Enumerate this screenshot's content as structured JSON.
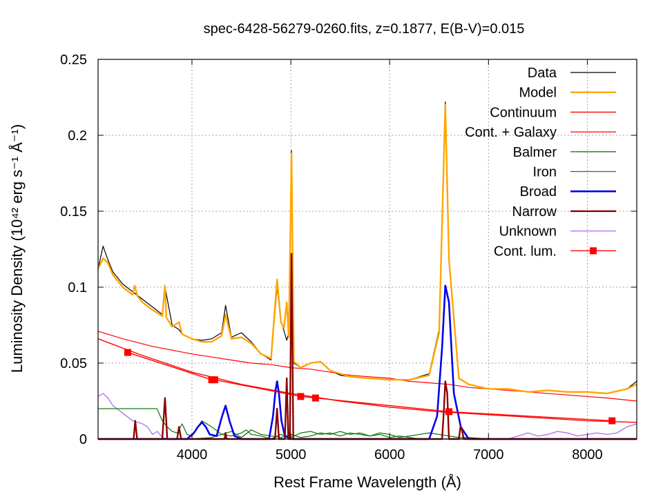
{
  "chart_data": {
    "type": "line",
    "title": "spec-6428-56279-0260.fits, z=0.1877, E(B-V)=0.015",
    "xlabel": "Rest Frame Wavelength (Å)",
    "ylabel": "Luminosity Density (10⁴² erg s⁻¹ Å⁻¹)",
    "xlim": [
      3050,
      8500
    ],
    "ylim": [
      0,
      0.25
    ],
    "xticks": [
      4000,
      5000,
      6000,
      7000,
      8000
    ],
    "xtick_labels": [
      "4000",
      "5000",
      "6000",
      "7000",
      "8000"
    ],
    "yticks": [
      0,
      0.05,
      0.1,
      0.15,
      0.2,
      0.25
    ],
    "ytick_labels": [
      "0",
      "0.05",
      "0.1",
      "0.15",
      "0.2",
      "0.25"
    ],
    "grid": true,
    "legend_position": "top-right",
    "series": [
      {
        "name": "Data",
        "color": "#000000",
        "x": [
          3050,
          3100,
          3150,
          3200,
          3300,
          3400,
          3500,
          3600,
          3700,
          3727,
          3800,
          3869,
          3900,
          4000,
          4100,
          4200,
          4300,
          4340,
          4400,
          4500,
          4600,
          4700,
          4800,
          4861,
          4900,
          4959,
          4980,
          5007,
          5030,
          5100,
          5200,
          5300,
          5400,
          5500,
          5600,
          5800,
          6000,
          6200,
          6400,
          6500,
          6563,
          6600,
          6700,
          6800,
          7000,
          7200,
          7400,
          7600,
          7800,
          8000,
          8200,
          8400,
          8500
        ],
        "y": [
          0.112,
          0.127,
          0.118,
          0.11,
          0.102,
          0.097,
          0.092,
          0.087,
          0.082,
          0.1,
          0.075,
          0.072,
          0.069,
          0.066,
          0.065,
          0.066,
          0.07,
          0.088,
          0.067,
          0.07,
          0.064,
          0.056,
          0.052,
          0.1,
          0.078,
          0.065,
          0.07,
          0.19,
          0.05,
          0.047,
          0.05,
          0.051,
          0.045,
          0.042,
          0.041,
          0.04,
          0.039,
          0.039,
          0.043,
          0.072,
          0.222,
          0.12,
          0.04,
          0.036,
          0.033,
          0.033,
          0.031,
          0.032,
          0.031,
          0.031,
          0.03,
          0.033,
          0.038
        ]
      },
      {
        "name": "Model",
        "color": "#ffa500",
        "x": [
          3050,
          3100,
          3150,
          3200,
          3300,
          3400,
          3420,
          3450,
          3500,
          3600,
          3700,
          3727,
          3740,
          3800,
          3869,
          3900,
          4000,
          4101,
          4200,
          4300,
          4340,
          4400,
          4500,
          4600,
          4700,
          4800,
          4861,
          4900,
          4930,
          4959,
          4980,
          5007,
          5030,
          5100,
          5200,
          5300,
          5400,
          5500,
          5600,
          5800,
          6000,
          6200,
          6400,
          6500,
          6563,
          6600,
          6700,
          6800,
          7000,
          7200,
          7400,
          7600,
          7800,
          8000,
          8200,
          8400,
          8500
        ],
        "y": [
          0.112,
          0.119,
          0.116,
          0.108,
          0.1,
          0.095,
          0.101,
          0.094,
          0.09,
          0.085,
          0.081,
          0.101,
          0.08,
          0.074,
          0.077,
          0.069,
          0.066,
          0.064,
          0.064,
          0.068,
          0.082,
          0.066,
          0.067,
          0.063,
          0.056,
          0.053,
          0.105,
          0.077,
          0.073,
          0.09,
          0.067,
          0.188,
          0.051,
          0.047,
          0.05,
          0.051,
          0.045,
          0.043,
          0.041,
          0.04,
          0.039,
          0.039,
          0.042,
          0.07,
          0.22,
          0.118,
          0.04,
          0.036,
          0.033,
          0.033,
          0.031,
          0.032,
          0.031,
          0.031,
          0.03,
          0.033,
          0.036
        ]
      },
      {
        "name": "Continuum",
        "color": "#ff0000",
        "x": [
          3050,
          3500,
          4000,
          4500,
          5000,
          5500,
          6000,
          6500,
          7000,
          7500,
          8000,
          8500
        ],
        "y": [
          0.066,
          0.055,
          0.044,
          0.036,
          0.03,
          0.025,
          0.021,
          0.018,
          0.016,
          0.014,
          0.012,
          0.011
        ]
      },
      {
        "name": "Cont. + Galaxy",
        "color": "#ff0000",
        "x": [
          3050,
          3300,
          3600,
          4000,
          4200,
          4400,
          4600,
          4800,
          5000,
          5200,
          5400,
          5600,
          5800,
          6000,
          6200,
          6400,
          6600,
          6800,
          7000,
          7400,
          7800,
          8200,
          8500
        ],
        "y": [
          0.071,
          0.066,
          0.061,
          0.056,
          0.054,
          0.052,
          0.05,
          0.049,
          0.047,
          0.046,
          0.044,
          0.042,
          0.041,
          0.04,
          0.038,
          0.037,
          0.036,
          0.034,
          0.033,
          0.031,
          0.029,
          0.027,
          0.025
        ]
      },
      {
        "name": "Balmer",
        "color": "#1a7a1a",
        "x": [
          3050,
          3300,
          3646,
          3700,
          3750,
          3800,
          3850,
          3900,
          3950,
          4000,
          4050,
          4100,
          4200,
          4300,
          4400,
          4500,
          4600,
          4700,
          4800,
          4900,
          5000,
          5100,
          5200,
          5300,
          5400,
          5500,
          5600,
          5700,
          5800,
          5900,
          6000,
          6100,
          6200,
          6300,
          6400,
          6500,
          6600,
          6700,
          6800,
          7000,
          8500
        ],
        "y": [
          0.02,
          0.02,
          0.02,
          0.012,
          0.008,
          0.005,
          0.004,
          0.01,
          0.003,
          0.002,
          0.007,
          0.012,
          0.008,
          0.003,
          0.005,
          0.001,
          0.006,
          0.003,
          0.002,
          0.001,
          0.003,
          0.001,
          0.002,
          0.004,
          0.003,
          0.005,
          0.003,
          0.004,
          0.002,
          0.004,
          0.003,
          0.001,
          0.002,
          0.003,
          0.004,
          0.003,
          0.002,
          0.001,
          0.001,
          0.0,
          0.0
        ]
      },
      {
        "name": "Iron",
        "color": "#1a7a1a",
        "x": [
          3050,
          4000,
          4200,
          4300,
          4400,
          4500,
          4550,
          4600,
          4700,
          4800,
          4900,
          5000,
          5100,
          5200,
          5300,
          5400,
          5500,
          5600,
          5700,
          5800,
          5900,
          6000,
          6100,
          6200,
          6300,
          8500
        ],
        "y": [
          0.0,
          0.0,
          0.001,
          0.003,
          0.002,
          0.004,
          0.006,
          0.003,
          0.002,
          0.0,
          0.003,
          0.001,
          0.004,
          0.005,
          0.003,
          0.004,
          0.002,
          0.004,
          0.003,
          0.002,
          0.003,
          0.001,
          0.002,
          0.001,
          0.0,
          0.0
        ]
      },
      {
        "name": "Broad",
        "color": "#0000ee",
        "x": [
          3050,
          3950,
          4020,
          4060,
          4101,
          4140,
          4180,
          4250,
          4300,
          4340,
          4380,
          4430,
          4500,
          4780,
          4820,
          4845,
          4861,
          4880,
          4905,
          4940,
          5000,
          6400,
          6480,
          6530,
          6563,
          6600,
          6650,
          6720,
          6800,
          8500
        ],
        "y": [
          0.0,
          0.0,
          0.004,
          0.008,
          0.011,
          0.008,
          0.003,
          0.002,
          0.014,
          0.022,
          0.012,
          0.002,
          0.0,
          0.0,
          0.015,
          0.032,
          0.038,
          0.03,
          0.012,
          0.002,
          0.0,
          0.0,
          0.015,
          0.06,
          0.101,
          0.09,
          0.03,
          0.008,
          0.0,
          0.0
        ]
      },
      {
        "name": "Narrow",
        "color": "#8b0000",
        "x": [
          3050,
          3410,
          3426,
          3445,
          3700,
          3727,
          3750,
          3850,
          3869,
          3890,
          4330,
          4340,
          4350,
          4840,
          4861,
          4880,
          4940,
          4959,
          4975,
          4990,
          5007,
          5025,
          6530,
          6548,
          6563,
          6583,
          6600,
          6700,
          6716,
          6731,
          6750,
          8500
        ],
        "y": [
          0.0,
          0.0,
          0.012,
          0.0,
          0.0,
          0.027,
          0.0,
          0.0,
          0.008,
          0.0,
          0.0,
          0.004,
          0.0,
          0.0,
          0.02,
          0.0,
          0.0,
          0.04,
          0.0,
          0.0,
          0.122,
          0.0,
          0.0,
          0.018,
          0.038,
          0.03,
          0.0,
          0.0,
          0.008,
          0.006,
          0.0,
          0.0
        ]
      },
      {
        "name": "Unknown",
        "color": "#b480f0",
        "x": [
          3050,
          3100,
          3150,
          3200,
          3300,
          3400,
          3500,
          3550,
          3600,
          3650,
          3700,
          3750,
          4000,
          7200,
          7300,
          7400,
          7500,
          7600,
          7700,
          7800,
          7900,
          8000,
          8100,
          8200,
          8300,
          8400,
          8500
        ],
        "y": [
          0.028,
          0.03,
          0.027,
          0.022,
          0.017,
          0.012,
          0.01,
          0.008,
          0.003,
          0.005,
          0.001,
          0.0,
          0.0,
          0.0,
          0.002,
          0.004,
          0.002,
          0.003,
          0.005,
          0.004,
          0.002,
          0.003,
          0.004,
          0.003,
          0.004,
          0.008,
          0.01
        ]
      },
      {
        "name": "Cont. lum.",
        "color": "#ff0000",
        "style": "markers-line",
        "x": [
          3350,
          4200,
          4230,
          5100,
          5250,
          6600,
          8250
        ],
        "y": [
          0.057,
          0.039,
          0.039,
          0.028,
          0.027,
          0.018,
          0.012
        ]
      }
    ]
  }
}
